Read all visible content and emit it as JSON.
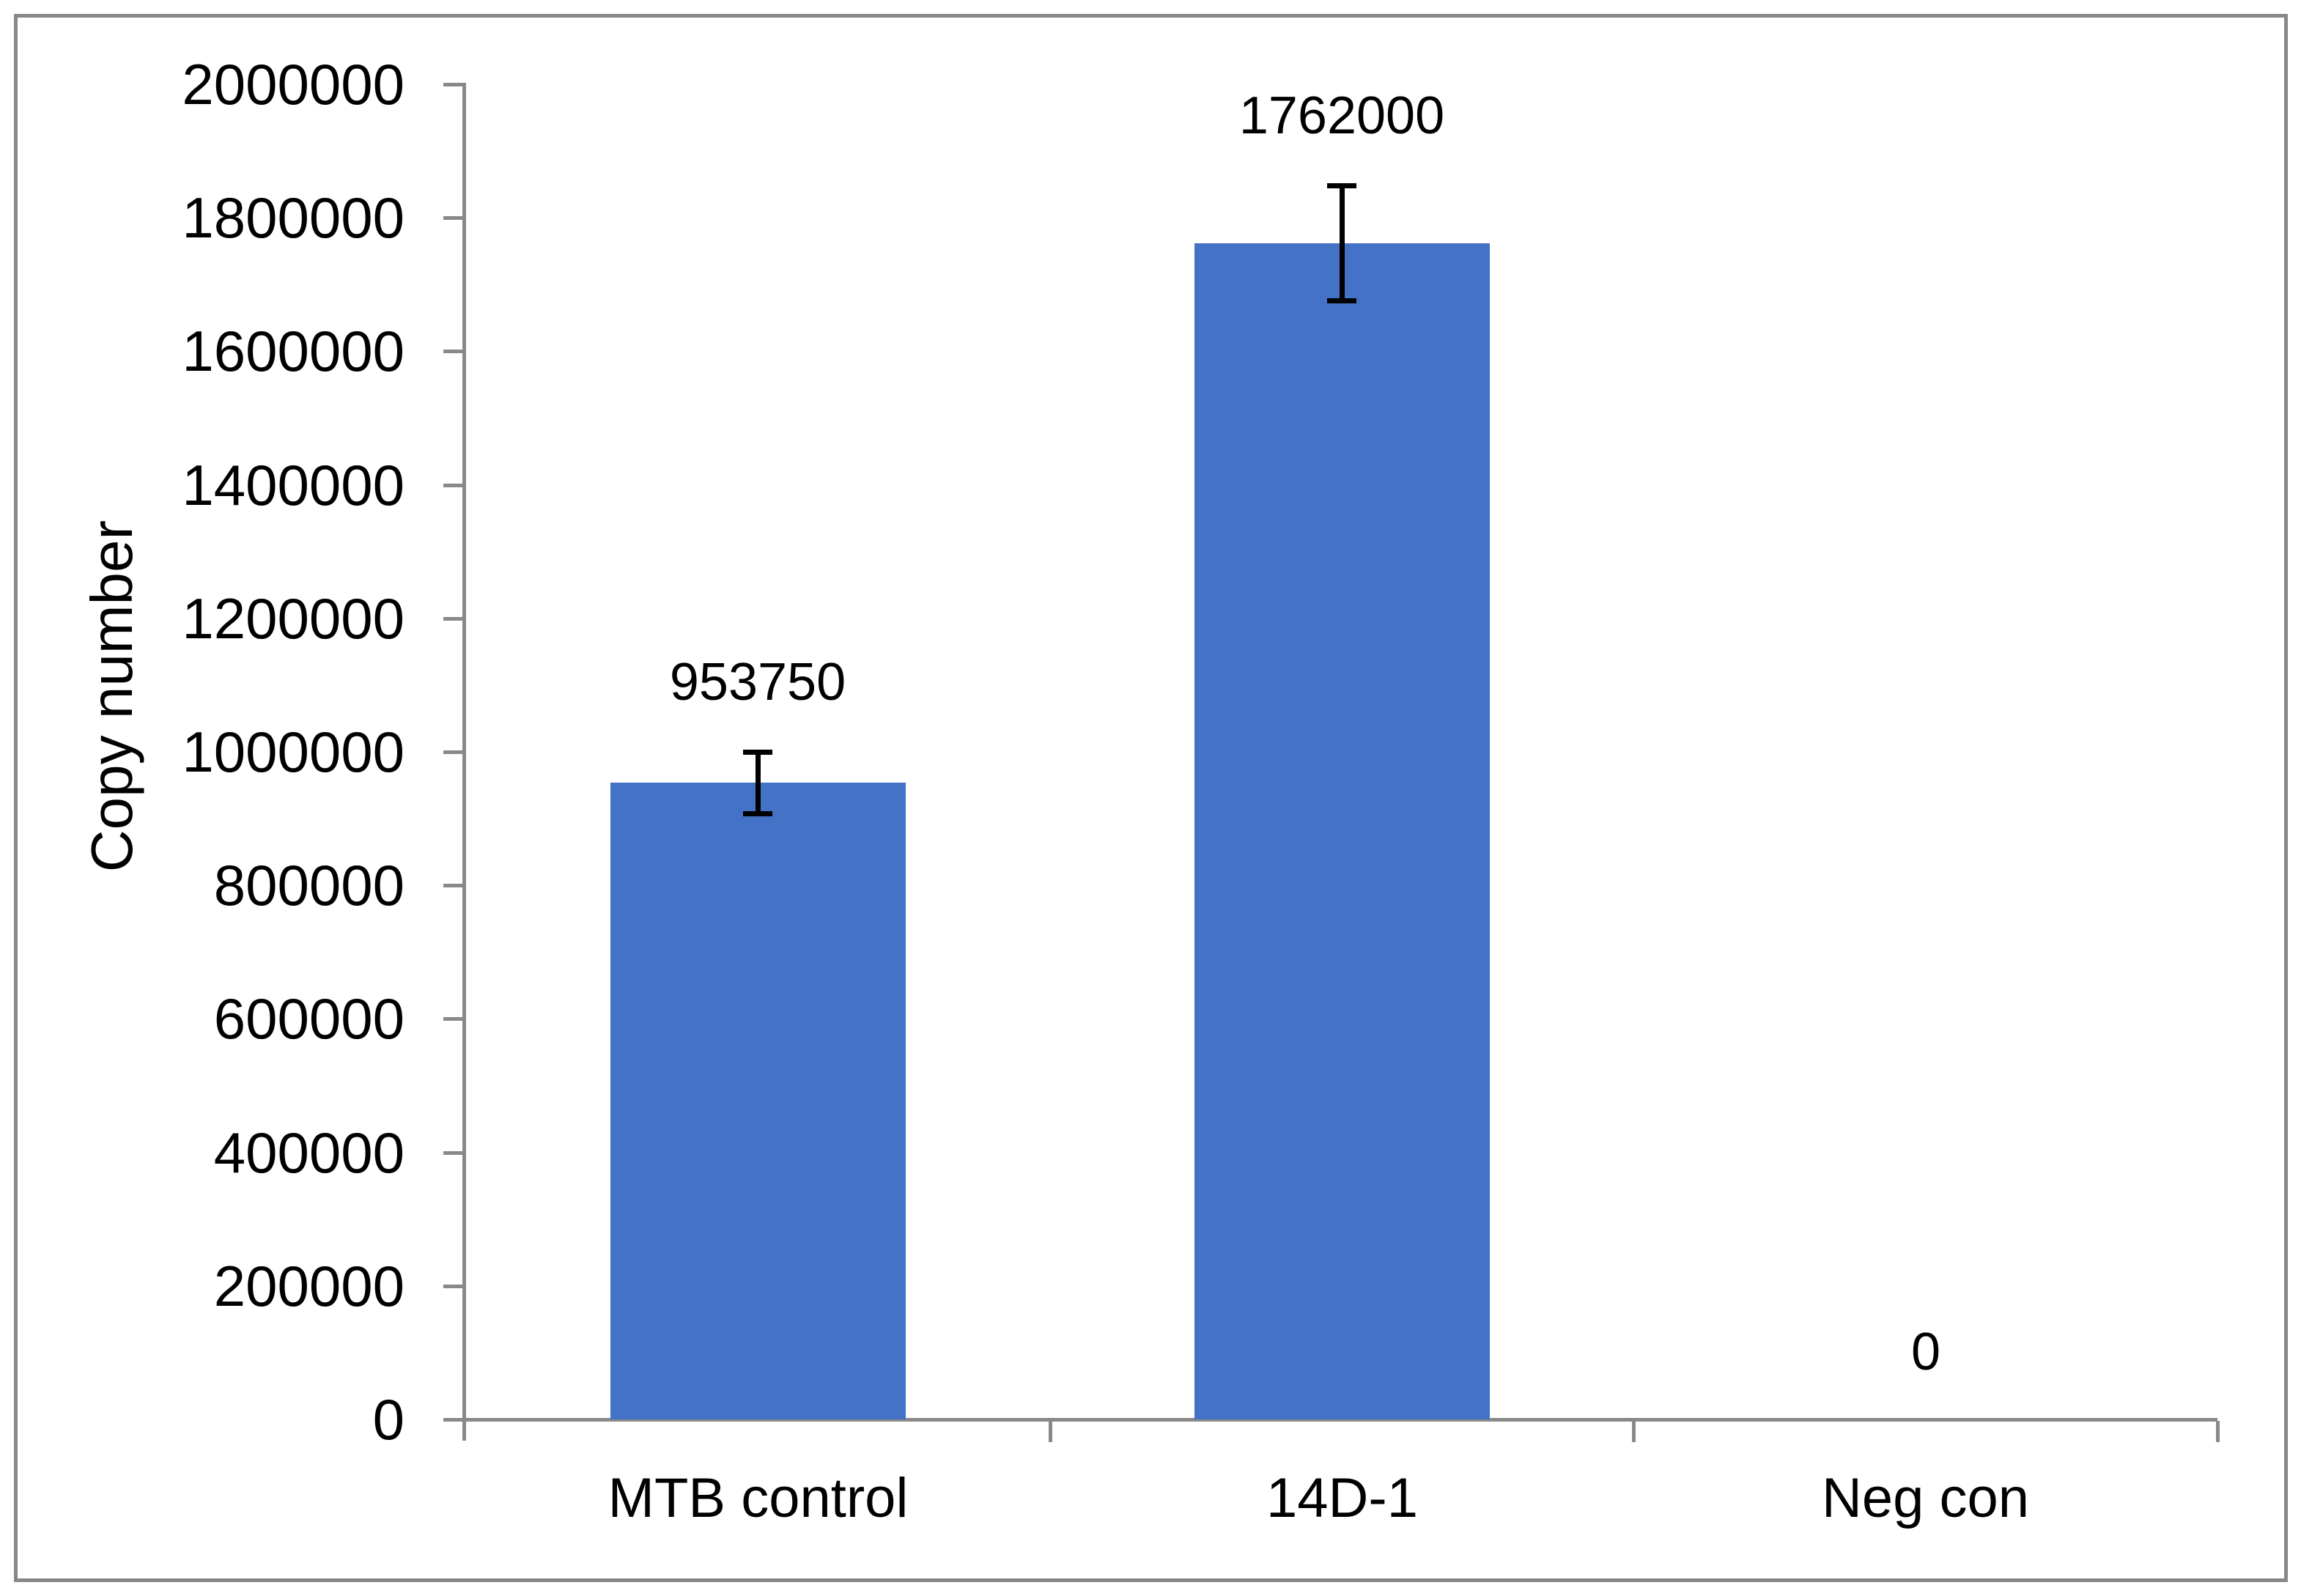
{
  "figure": {
    "background_color": "#ffffff",
    "border_color": "#878787"
  },
  "chart_data": {
    "type": "bar",
    "title": "",
    "categories": [
      "MTB control",
      "14D-1",
      "Neg con"
    ],
    "values": [
      953750,
      1762000,
      0
    ],
    "data_labels": [
      "953750",
      "1762000",
      "0"
    ],
    "error_bars_plus_minus": [
      50000,
      90000,
      0
    ],
    "xlabel": "",
    "ylabel": "Copy number",
    "ylim": [
      0,
      2000000
    ],
    "ytick_step": 200000,
    "ytick_labels": [
      "0",
      "200000",
      "400000",
      "600000",
      "800000",
      "1000000",
      "1200000",
      "1400000",
      "1600000",
      "1800000",
      "2000000"
    ],
    "grid": false,
    "legend": "none",
    "bar_color": "#4472C6",
    "axis_color": "#898989",
    "error_bar_color": "#000000",
    "text_color": "#000000"
  }
}
